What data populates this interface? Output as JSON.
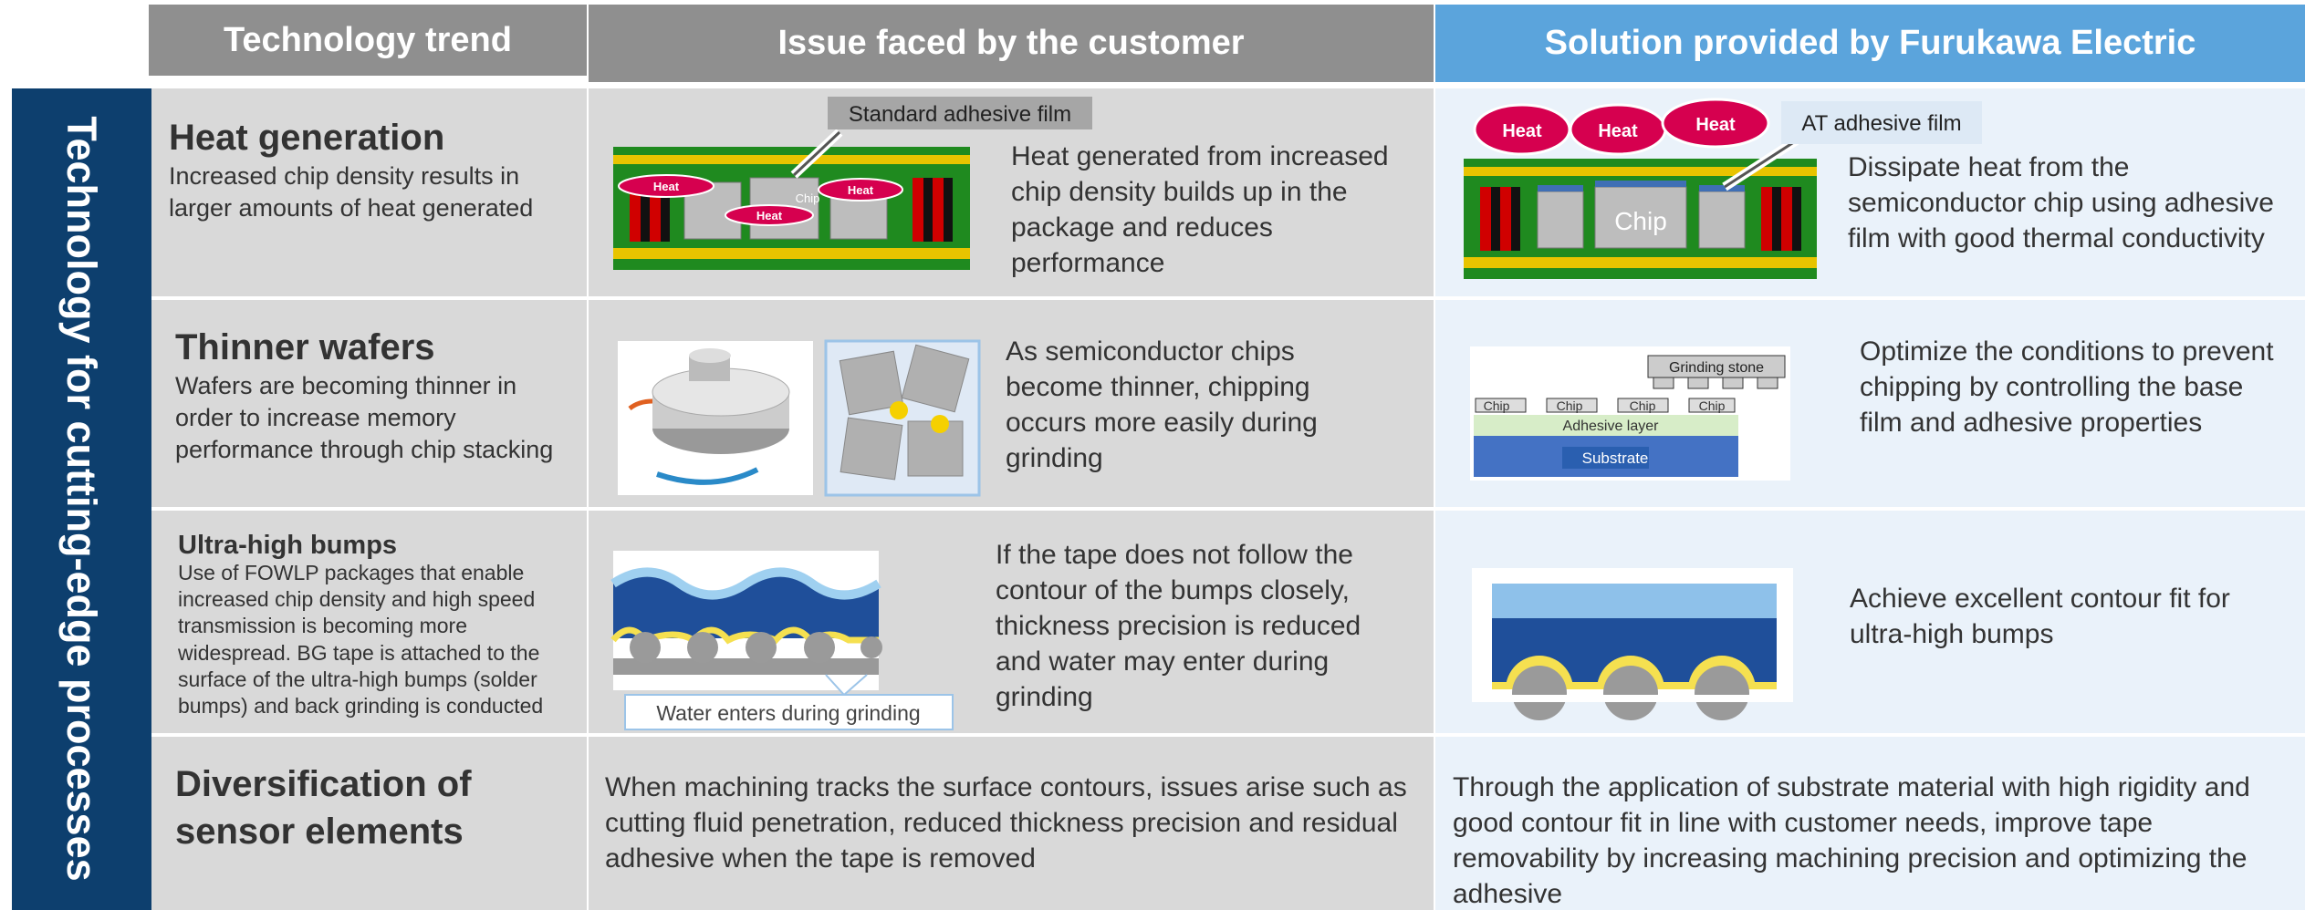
{
  "header": {
    "trend": "Technology trend",
    "issue": "Issue faced by the customer",
    "solution": "Solution provided by Furukawa Electric"
  },
  "side_label": "Technology for cutting-edge processes",
  "rows": [
    {
      "title": "Heat generation",
      "description": "Increased chip density results in larger amounts of heat generated",
      "issue": "Heat generated from increased chip density builds up in the package and reduces performance",
      "solution": "Dissipate heat from the semiconductor chip using adhesive film with good thermal conductivity"
    },
    {
      "title": "Thinner wafers",
      "description": "Wafers are becoming thinner in order to increase memory performance through chip stacking",
      "issue": "As semiconductor chips become thinner, chipping occurs more easily during grinding",
      "solution": "Optimize the conditions to prevent chipping by controlling the base film and adhesive properties"
    },
    {
      "title": "Ultra-high bumps",
      "description": "Use of FOWLP packages that enable increased chip density and high speed transmission is becoming more widespread. BG tape is attached to the surface of the ultra-high bumps (solder bumps) and back grinding is conducted",
      "issue": "If the tape does not follow the contour of the bumps closely, thickness precision is reduced and water may enter during grinding",
      "solution": "Achieve excellent contour fit for ultra-high bumps"
    },
    {
      "title": "Diversification of sensor elements",
      "issue": "When machining tracks the surface contours, issues arise such as cutting fluid penetration, reduced thickness precision and residual adhesive when the tape is removed",
      "solution": "Through the application of substrate material with high rigidity and good contour fit in line with customer needs, improve tape removability by increasing machining precision and optimizing the adhesive"
    }
  ],
  "figures": {
    "heat_issue": {
      "film": "Standard adhesive film",
      "heat": [
        "Heat",
        "Heat",
        "Heat"
      ],
      "chip": "Chip"
    },
    "heat_solution": {
      "film": "AT adhesive film",
      "heat": [
        "Heat",
        "Heat",
        "Heat"
      ],
      "chip": "Chip"
    },
    "wafer_solution": {
      "stone": "Grinding stone",
      "chips": [
        "Chip",
        "Chip",
        "Chip",
        "Chip"
      ],
      "adhesive": "Adhesive layer",
      "substrate": "Substrate"
    },
    "bump_issue": {
      "water": "Water enters during grinding"
    }
  }
}
